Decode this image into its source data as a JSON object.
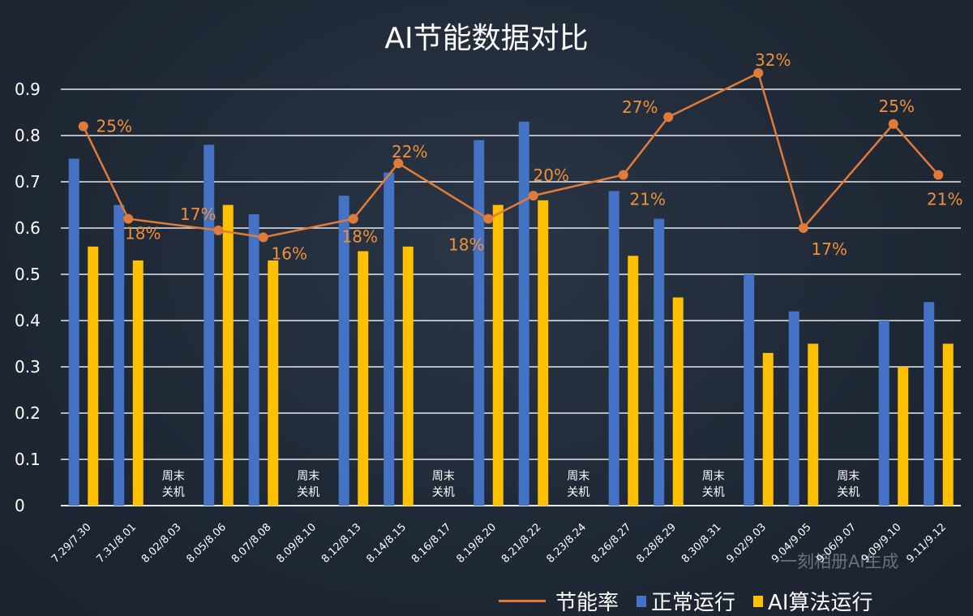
{
  "chart_data": {
    "type": "bar+line",
    "title": "AI节能数据对比",
    "categories": [
      "7.29/7.30",
      "7.31/8.01",
      "8.02/8.03",
      "8.05/8.06",
      "8.07/8.08",
      "8.09/8.10",
      "8.12/8.13",
      "8.14/8.15",
      "8.16/8.17",
      "8.19/8.20",
      "8.21/8.22",
      "8.23/8.24",
      "8.26/8.27",
      "8.28/8.29",
      "8.30/8.31",
      "9.02/9.03",
      "9.04/9.05",
      "9.06/9.07",
      "9.09/9.10",
      "9.11/9.12"
    ],
    "series": [
      {
        "name": "正常运行",
        "type": "bar",
        "color": "#4472c4",
        "values": [
          0.75,
          0.65,
          null,
          0.78,
          0.63,
          null,
          0.67,
          0.72,
          null,
          0.79,
          0.83,
          null,
          0.68,
          0.62,
          null,
          0.5,
          0.42,
          null,
          0.4,
          0.44
        ]
      },
      {
        "name": "AI算法运行",
        "type": "bar",
        "color": "#ffc000",
        "values": [
          0.56,
          0.53,
          null,
          0.65,
          0.53,
          null,
          0.55,
          0.56,
          null,
          0.65,
          0.66,
          null,
          0.54,
          0.45,
          null,
          0.33,
          0.35,
          null,
          0.3,
          0.35
        ]
      },
      {
        "name": "节能率",
        "type": "line",
        "color": "#e07b39",
        "values": [
          0.82,
          0.62,
          null,
          0.595,
          0.58,
          null,
          0.62,
          0.74,
          null,
          0.62,
          0.67,
          null,
          0.715,
          0.84,
          null,
          0.935,
          0.6,
          null,
          0.825,
          0.715
        ],
        "labels": [
          "25%",
          "18%",
          null,
          "17%",
          "16%",
          null,
          "18%",
          "22%",
          null,
          "18%",
          "20%",
          null,
          "21%",
          "27%",
          null,
          "32%",
          "17%",
          null,
          "25%",
          "21%"
        ]
      }
    ],
    "annotations": {
      "weekend_text_line1": "周末",
      "weekend_text_line2": "关机",
      "weekend_categories": [
        "8.02/8.03",
        "8.09/8.10",
        "8.16/8.17",
        "8.23/8.24",
        "8.30/8.31",
        "9.06/9.07"
      ]
    },
    "yticks": [
      "0",
      "0.1",
      "0.2",
      "0.3",
      "0.4",
      "0.5",
      "0.6",
      "0.7",
      "0.8",
      "0.9"
    ],
    "ylim": [
      0,
      0.9
    ],
    "grid": true,
    "legend_placement": "bottom-right",
    "label_color": "#f0903a"
  },
  "legend": {
    "line": "节能率",
    "bar1": "正常运行",
    "bar2": "AI算法运行"
  },
  "watermark": "一刻相册AI生成"
}
